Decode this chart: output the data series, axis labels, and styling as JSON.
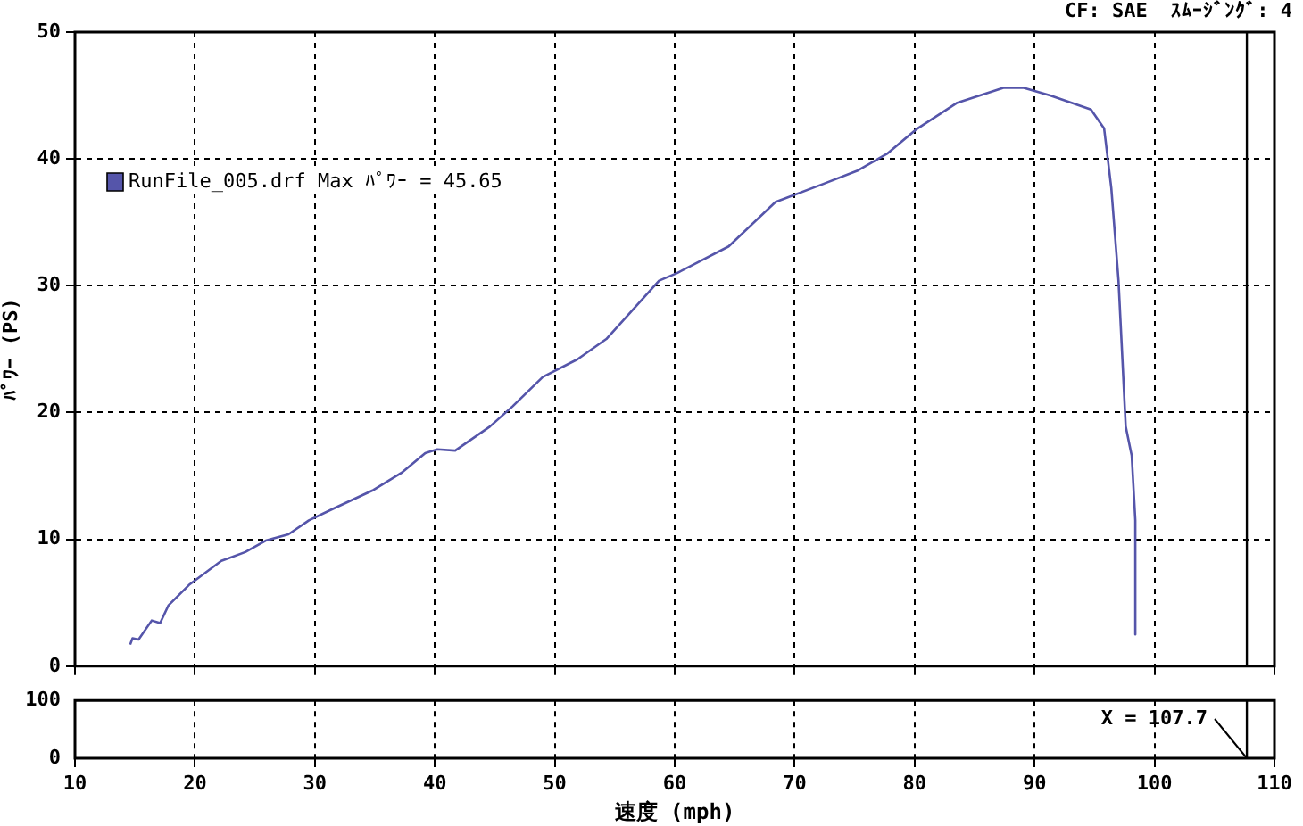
{
  "chart_data": [
    {
      "type": "line",
      "ylabel": "ﾊﾟﾜｰ (PS)",
      "annotations": [
        "CF: SAE  ｽﾑｰｼﾞﾝｸﾞ: 4"
      ],
      "legend": "top left",
      "grid": true,
      "tick_labels": "y",
      "line_style": "solid",
      "xlim": [
        10,
        110
      ],
      "xticks": [
        10,
        20,
        30,
        40,
        50,
        60,
        70,
        80,
        90,
        100,
        110
      ],
      "ylim": [
        0,
        50
      ],
      "yticks": [
        0,
        10,
        20,
        30,
        40,
        50
      ],
      "ref_lines": [
        {
          "axis": "x",
          "value": 107.7,
          "color": "#000000"
        }
      ],
      "series": [
        {
          "name": "RunFile_005.drf Max ﾊﾟﾜｰ = 45.65",
          "color": "#5555aa",
          "x": [
            14.6,
            14.8,
            15.3,
            16.4,
            17.1,
            17.8,
            19.5,
            22.2,
            24.2,
            25.9,
            27.8,
            29.5,
            31.5,
            34.9,
            37.3,
            39.2,
            40.2,
            41.7,
            44.6,
            46.5,
            49.0,
            51.9,
            54.3,
            56.5,
            58.7,
            60.2,
            64.5,
            68.4,
            72.3,
            75.3,
            77.7,
            80.1,
            83.5,
            87.4,
            89.1,
            91.3,
            94.7,
            95.8,
            96.4,
            97.0,
            97.6,
            98.1,
            98.4,
            98.4
          ],
          "values": [
            1.7,
            2.2,
            2.1,
            3.6,
            3.4,
            4.8,
            6.4,
            8.3,
            9.0,
            9.9,
            10.4,
            11.5,
            12.4,
            13.9,
            15.3,
            16.8,
            17.1,
            17.0,
            18.9,
            20.5,
            22.8,
            24.2,
            25.8,
            28.1,
            30.4,
            31.0,
            33.1,
            36.6,
            38.0,
            39.1,
            40.4,
            42.3,
            44.4,
            45.6,
            45.6,
            45.0,
            43.9,
            42.4,
            37.7,
            30.4,
            18.9,
            16.6,
            11.5,
            2.5
          ]
        }
      ]
    },
    {
      "type": "line",
      "xlabel": "速度 (mph)",
      "grid": "x",
      "xlim": [
        10,
        110
      ],
      "xticks": [
        10,
        20,
        30,
        40,
        50,
        60,
        70,
        80,
        90,
        100,
        110
      ],
      "ylim": [
        0,
        100
      ],
      "yticks": [
        0,
        100
      ],
      "ref_lines": [
        {
          "axis": "x",
          "value": 107.7,
          "label": "X = 107.7",
          "color": "#000000"
        }
      ]
    }
  ]
}
